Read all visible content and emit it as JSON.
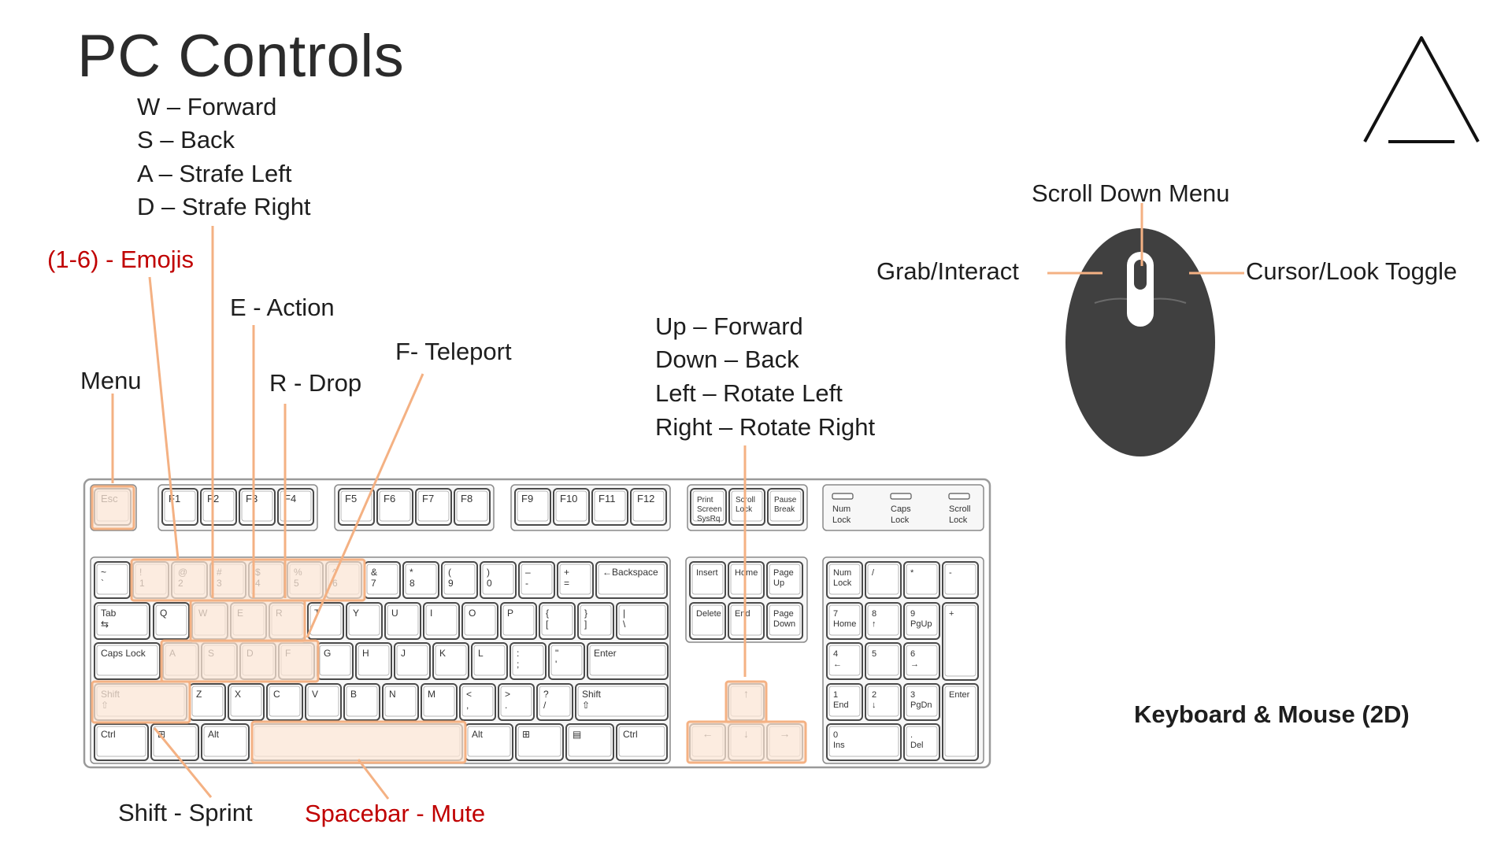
{
  "title": "PC Controls",
  "bindings": {
    "w": "W – Forward",
    "s": "S – Back",
    "a": "A – Strafe Left",
    "d": "D – Strafe Right",
    "emojis": "(1-6) - Emojis",
    "action": "E - Action",
    "teleport": "F- Teleport",
    "menu": "Menu",
    "drop": "R - Drop",
    "sprint": "Shift - Sprint",
    "mute": "Spacebar - Mute",
    "up": "Up – Forward",
    "down": "Down – Back",
    "left": "Left – Rotate Left",
    "right": "Right – Rotate Right"
  },
  "mouse": {
    "scroll": "Scroll Down Menu",
    "left_button": "Grab/Interact",
    "right_button": "Cursor/Look Toggle"
  },
  "footer": "Keyboard & Mouse (2D)",
  "colors": {
    "highlight_fill": "#fbe5d6",
    "highlight_stroke": "#f4b183",
    "accent_red": "#c00000",
    "mouse_body": "#404040"
  },
  "icons": [
    "triangle-logo-icon",
    "mouse-icon",
    "keyboard-icon"
  ],
  "keyboard": {
    "function_row": [
      {
        "top": "Esc",
        "bottom": ""
      },
      {
        "top": "F1",
        "bottom": ""
      },
      {
        "top": "F2",
        "bottom": ""
      },
      {
        "top": "F3",
        "bottom": ""
      },
      {
        "top": "F4",
        "bottom": ""
      },
      {
        "top": "F5",
        "bottom": ""
      },
      {
        "top": "F6",
        "bottom": ""
      },
      {
        "top": "F7",
        "bottom": ""
      },
      {
        "top": "F8",
        "bottom": ""
      },
      {
        "top": "F9",
        "bottom": ""
      },
      {
        "top": "F10",
        "bottom": ""
      },
      {
        "top": "F11",
        "bottom": ""
      },
      {
        "top": "F12",
        "bottom": ""
      },
      {
        "top": "Print Screen SysRq",
        "bottom": ""
      },
      {
        "top": "Scroll Lock",
        "bottom": ""
      },
      {
        "top": "Pause Break",
        "bottom": ""
      }
    ],
    "number_row": [
      {
        "top": "~",
        "bottom": "`"
      },
      {
        "top": "!",
        "bottom": "1"
      },
      {
        "top": "@",
        "bottom": "2"
      },
      {
        "top": "#",
        "bottom": "3"
      },
      {
        "top": "$",
        "bottom": "4"
      },
      {
        "top": "%",
        "bottom": "5"
      },
      {
        "top": "^",
        "bottom": "6"
      },
      {
        "top": "&",
        "bottom": "7"
      },
      {
        "top": "*",
        "bottom": "8"
      },
      {
        "top": "(",
        "bottom": "9"
      },
      {
        "top": ")",
        "bottom": "0"
      },
      {
        "top": "–",
        "bottom": "-"
      },
      {
        "top": "+",
        "bottom": "="
      },
      {
        "top": "←Backspace",
        "bottom": ""
      }
    ],
    "tab_row": [
      {
        "top": "Tab",
        "bottom": "⇆"
      },
      {
        "top": "Q",
        "bottom": ""
      },
      {
        "top": "W",
        "bottom": ""
      },
      {
        "top": "E",
        "bottom": ""
      },
      {
        "top": "R",
        "bottom": ""
      },
      {
        "top": "T",
        "bottom": ""
      },
      {
        "top": "Y",
        "bottom": ""
      },
      {
        "top": "U",
        "bottom": ""
      },
      {
        "top": "I",
        "bottom": ""
      },
      {
        "top": "O",
        "bottom": ""
      },
      {
        "top": "P",
        "bottom": ""
      },
      {
        "top": "{",
        "bottom": "["
      },
      {
        "top": "}",
        "bottom": "]"
      },
      {
        "top": "|",
        "bottom": "\\"
      }
    ],
    "caps_row": [
      {
        "top": "Caps Lock",
        "bottom": ""
      },
      {
        "top": "A",
        "bottom": ""
      },
      {
        "top": "S",
        "bottom": ""
      },
      {
        "top": "D",
        "bottom": ""
      },
      {
        "top": "F",
        "bottom": ""
      },
      {
        "top": "G",
        "bottom": ""
      },
      {
        "top": "H",
        "bottom": ""
      },
      {
        "top": "J",
        "bottom": ""
      },
      {
        "top": "K",
        "bottom": ""
      },
      {
        "top": "L",
        "bottom": ""
      },
      {
        "top": ":",
        "bottom": ";"
      },
      {
        "top": "\"",
        "bottom": "'"
      },
      {
        "top": "Enter",
        "bottom": ""
      }
    ],
    "shift_row": [
      {
        "top": "Shift",
        "bottom": "⇧"
      },
      {
        "top": "Z",
        "bottom": ""
      },
      {
        "top": "X",
        "bottom": ""
      },
      {
        "top": "C",
        "bottom": ""
      },
      {
        "top": "V",
        "bottom": ""
      },
      {
        "top": "B",
        "bottom": ""
      },
      {
        "top": "N",
        "bottom": ""
      },
      {
        "top": "M",
        "bottom": ""
      },
      {
        "top": "<",
        "bottom": ","
      },
      {
        "top": ">",
        "bottom": "."
      },
      {
        "top": "?",
        "bottom": "/"
      },
      {
        "top": "Shift",
        "bottom": "⇧"
      }
    ],
    "ctrl_row": [
      {
        "top": "Ctrl",
        "bottom": ""
      },
      {
        "top": "⊞",
        "bottom": ""
      },
      {
        "top": "Alt",
        "bottom": ""
      },
      {
        "top": "",
        "bottom": ""
      },
      {
        "top": "Alt",
        "bottom": ""
      },
      {
        "top": "⊞",
        "bottom": ""
      },
      {
        "top": "▤",
        "bottom": ""
      },
      {
        "top": "Ctrl",
        "bottom": ""
      }
    ],
    "nav_cluster": [
      {
        "top": "Insert",
        "bottom": ""
      },
      {
        "top": "Home",
        "bottom": ""
      },
      {
        "top": "Page Up",
        "bottom": ""
      },
      {
        "top": "Delete",
        "bottom": ""
      },
      {
        "top": "End",
        "bottom": ""
      },
      {
        "top": "Page Down",
        "bottom": ""
      }
    ],
    "arrows": [
      {
        "top": "↑",
        "bottom": ""
      },
      {
        "top": "←",
        "bottom": ""
      },
      {
        "top": "↓",
        "bottom": ""
      },
      {
        "top": "→",
        "bottom": ""
      }
    ],
    "indicators": [
      {
        "top": "Num Lock",
        "bottom": ""
      },
      {
        "top": "Caps Lock",
        "bottom": ""
      },
      {
        "top": "Scroll Lock",
        "bottom": ""
      }
    ],
    "numpad": [
      {
        "top": "Num Lock",
        "bottom": ""
      },
      {
        "top": "/",
        "bottom": ""
      },
      {
        "top": "*",
        "bottom": ""
      },
      {
        "top": "-",
        "bottom": ""
      },
      {
        "top": "7",
        "bottom": "Home"
      },
      {
        "top": "8",
        "bottom": "↑"
      },
      {
        "top": "9",
        "bottom": "PgUp"
      },
      {
        "top": "+",
        "bottom": ""
      },
      {
        "top": "4",
        "bottom": "←"
      },
      {
        "top": "5",
        "bottom": ""
      },
      {
        "top": "6",
        "bottom": "→"
      },
      {
        "top": "1",
        "bottom": "End"
      },
      {
        "top": "2",
        "bottom": "↓"
      },
      {
        "top": "3",
        "bottom": "PgDn"
      },
      {
        "top": "Enter",
        "bottom": ""
      },
      {
        "top": "0",
        "bottom": "Ins"
      },
      {
        "top": ".",
        "bottom": "Del"
      }
    ]
  }
}
